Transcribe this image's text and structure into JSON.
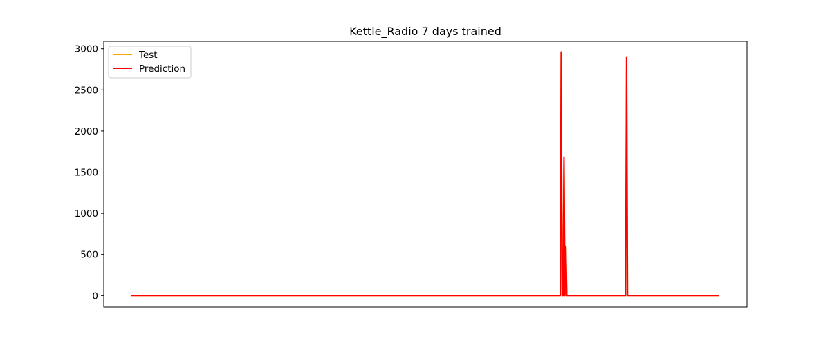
{
  "chart_data": {
    "type": "line",
    "title": "Kettle_Radio 7 days trained",
    "xlabel": "",
    "ylabel": "",
    "x_ticks_visible": false,
    "xlim": [
      -29,
      660
    ],
    "ylim": [
      -140,
      3090
    ],
    "y_ticks": [
      0,
      500,
      1000,
      1500,
      2000,
      2500,
      3000
    ],
    "grid": false,
    "legend_position": "top-left",
    "series": [
      {
        "name": "Test",
        "color": "#ffa500",
        "x": [
          0,
          460,
          461,
          462,
          463,
          464,
          465,
          466,
          467,
          468,
          469,
          530,
          531,
          532,
          533,
          630
        ],
        "y": [
          0,
          0,
          2960,
          0,
          0,
          1685,
          0,
          600,
          0,
          0,
          0,
          0,
          2900,
          0,
          0,
          0
        ]
      },
      {
        "name": "Prediction",
        "color": "#ff0000",
        "x": [
          0,
          460,
          461,
          462,
          463,
          464,
          465,
          466,
          467,
          468,
          469,
          530,
          531,
          532,
          533,
          630
        ],
        "y": [
          0,
          0,
          2960,
          0,
          0,
          1685,
          0,
          600,
          0,
          0,
          0,
          0,
          2900,
          0,
          0,
          0
        ]
      }
    ]
  }
}
